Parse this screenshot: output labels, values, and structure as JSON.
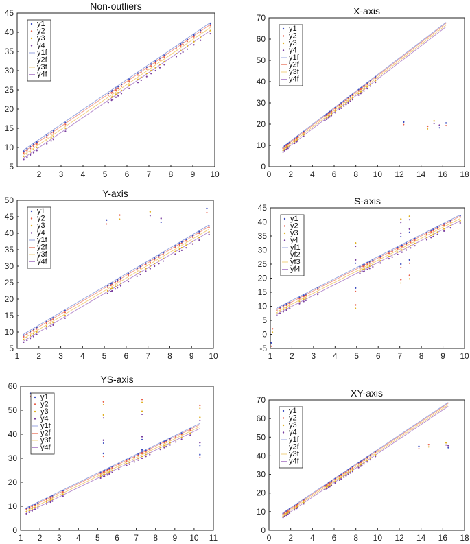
{
  "chart_data": [
    {
      "type": "scatter",
      "title": "Non-outliers",
      "xlim": [
        1,
        10
      ],
      "ylim": [
        5,
        45
      ],
      "xticks": [
        2,
        3,
        4,
        5,
        6,
        7,
        8,
        9,
        10
      ],
      "yticks": [
        5,
        10,
        15,
        20,
        25,
        30,
        35,
        40,
        45
      ],
      "legend_placement": "top-left",
      "legend": [
        "y1",
        "y2",
        "y3",
        "y4",
        "y1f",
        "y2f",
        "y3f",
        "y4f"
      ],
      "outliers": []
    },
    {
      "type": "scatter",
      "title": "X-axis",
      "xlim": [
        0,
        18
      ],
      "ylim": [
        0,
        70
      ],
      "xticks": [
        0,
        2,
        4,
        6,
        8,
        10,
        12,
        14,
        16,
        18
      ],
      "yticks": [
        0,
        10,
        20,
        30,
        40,
        50,
        60,
        70
      ],
      "legend_placement": "top-left",
      "legend": [
        "y1",
        "y2",
        "y3",
        "y4",
        "y1f",
        "y2f",
        "y3f",
        "y4f"
      ],
      "outliers": [
        [
          12.4,
          21
        ],
        [
          14.6,
          19
        ],
        [
          15.2,
          21.5
        ],
        [
          15.7,
          19.5
        ],
        [
          16.3,
          20.5
        ]
      ]
    },
    {
      "type": "scatter",
      "title": "Y-axis",
      "xlim": [
        1,
        10
      ],
      "ylim": [
        5,
        50
      ],
      "xticks": [
        1,
        2,
        3,
        4,
        5,
        6,
        7,
        8,
        9,
        10
      ],
      "yticks": [
        5,
        10,
        15,
        20,
        25,
        30,
        35,
        40,
        45,
        50
      ],
      "legend_placement": "top-left",
      "legend": [
        "y1",
        "y2",
        "y3",
        "y4",
        "y1f",
        "y2f",
        "y3f",
        "y4f"
      ],
      "outliers": [
        [
          5.1,
          44
        ],
        [
          5.7,
          45.5
        ],
        [
          7.1,
          46.5
        ],
        [
          7.6,
          44.5
        ],
        [
          9.7,
          47.5
        ]
      ]
    },
    {
      "type": "scatter",
      "title": "S-axis",
      "xlim": [
        1,
        10
      ],
      "ylim": [
        -5,
        45
      ],
      "xticks": [
        1,
        2,
        3,
        4,
        5,
        6,
        7,
        8,
        9,
        10
      ],
      "yticks": [
        -5,
        0,
        5,
        10,
        15,
        20,
        25,
        30,
        35,
        40,
        45
      ],
      "legend_placement": "top-left",
      "legend": [
        "y1",
        "y2",
        "y3",
        "y4",
        "yf1",
        "yf2",
        "yf3",
        "yf4"
      ],
      "outliers": [
        [
          1.05,
          -3
        ],
        [
          1.1,
          2
        ],
        [
          4.95,
          32.5
        ],
        [
          4.95,
          26.5
        ],
        [
          4.95,
          16.5
        ],
        [
          4.95,
          10.5
        ],
        [
          7.05,
          41
        ],
        [
          7.05,
          36
        ],
        [
          7.05,
          25
        ],
        [
          7.05,
          19.5
        ],
        [
          7.45,
          42
        ],
        [
          7.45,
          37.5
        ],
        [
          7.45,
          26.5
        ],
        [
          7.45,
          21
        ]
      ]
    },
    {
      "type": "scatter",
      "title": "YS-axis",
      "xlim": [
        1,
        11
      ],
      "ylim": [
        0,
        60
      ],
      "xticks": [
        1,
        2,
        3,
        4,
        5,
        6,
        7,
        8,
        9,
        10,
        11
      ],
      "yticks": [
        0,
        10,
        20,
        30,
        40,
        50,
        60
      ],
      "legend_placement": "top-left",
      "legend": [
        "y1",
        "y2",
        "y3",
        "y4",
        "y1f",
        "y2f",
        "y3f",
        "y4f"
      ],
      "outliers": [
        [
          1.5,
          57
        ],
        [
          2.6,
          55
        ],
        [
          2.6,
          50
        ],
        [
          2.6,
          40
        ],
        [
          2.6,
          35
        ],
        [
          5.3,
          53.5
        ],
        [
          5.3,
          48
        ],
        [
          5.3,
          37.5
        ],
        [
          5.3,
          32
        ],
        [
          7.3,
          54.5
        ],
        [
          7.3,
          49.5
        ],
        [
          7.3,
          39
        ],
        [
          7.3,
          33.5
        ],
        [
          10.3,
          52
        ],
        [
          10.3,
          47
        ],
        [
          10.3,
          36.5
        ],
        [
          10.3,
          31.5
        ]
      ]
    },
    {
      "type": "scatter",
      "title": "XY-axis",
      "xlim": [
        0,
        18
      ],
      "ylim": [
        0,
        70
      ],
      "xticks": [
        0,
        2,
        4,
        6,
        8,
        10,
        12,
        14,
        16,
        18
      ],
      "yticks": [
        0,
        10,
        20,
        30,
        40,
        50,
        60,
        70
      ],
      "legend_placement": "top-left",
      "legend": [
        "y1",
        "y2",
        "y3",
        "y4",
        "y1f",
        "y2f",
        "y3f",
        "y4f"
      ],
      "outliers": [
        [
          13.8,
          45
        ],
        [
          14.7,
          46
        ],
        [
          16.3,
          47
        ],
        [
          16.5,
          45.5
        ]
      ]
    }
  ],
  "shared": {
    "series_x": [
      1.3,
      1.45,
      1.6,
      1.75,
      1.9,
      2.35,
      2.55,
      2.65,
      3.2,
      5.15,
      5.3,
      5.35,
      5.5,
      5.6,
      5.75,
      6.1,
      6.5,
      6.65,
      6.9,
      7.1,
      7.3,
      7.5,
      7.7,
      8.25,
      8.45,
      8.55,
      8.75,
      9.05,
      9.35,
      9.8
    ],
    "series": [
      {
        "name": "y1",
        "intercept": 4.0,
        "slope": 3.9
      },
      {
        "name": "y2",
        "intercept": 3.5,
        "slope": 3.9
      },
      {
        "name": "y3",
        "intercept": 2.7,
        "slope": 3.85
      },
      {
        "name": "y4",
        "intercept": 1.9,
        "slope": 3.85
      }
    ],
    "colors": [
      "#3b4cc0",
      "#e8604c",
      "#e0b020",
      "#7a3fa0"
    ]
  }
}
